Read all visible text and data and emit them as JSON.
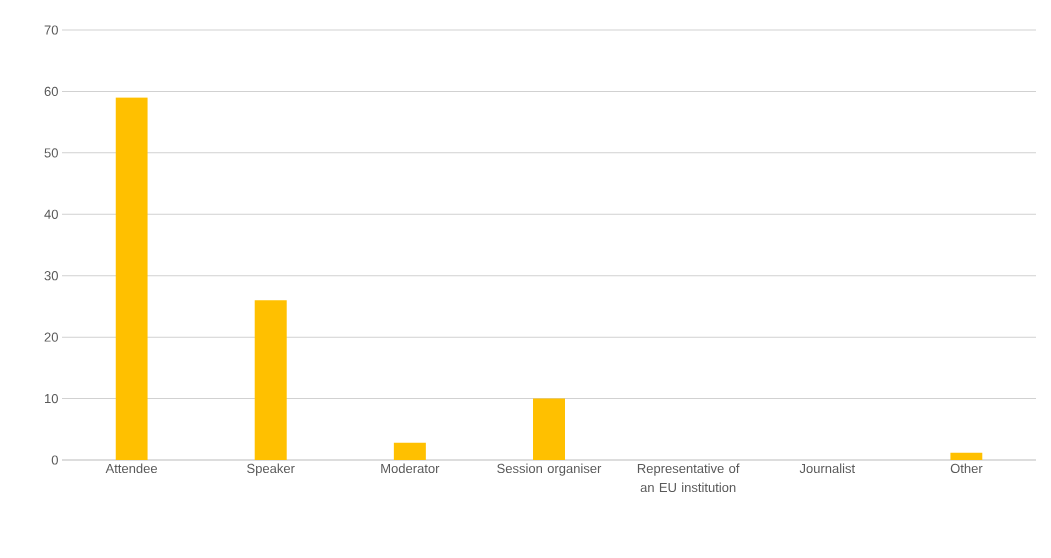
{
  "chart_data": {
    "type": "bar",
    "categories": [
      "Attendee",
      "Speaker",
      "Moderator",
      "Session organiser",
      "Representative of an EU institution",
      "Journalist",
      "Other"
    ],
    "values": [
      59,
      26,
      2.8,
      10,
      0,
      0,
      1.2
    ],
    "color": "#ffc000",
    "ylim": [
      0,
      70
    ],
    "yticks": [
      0,
      10,
      20,
      30,
      40,
      50,
      60,
      70
    ],
    "grid": "y"
  }
}
